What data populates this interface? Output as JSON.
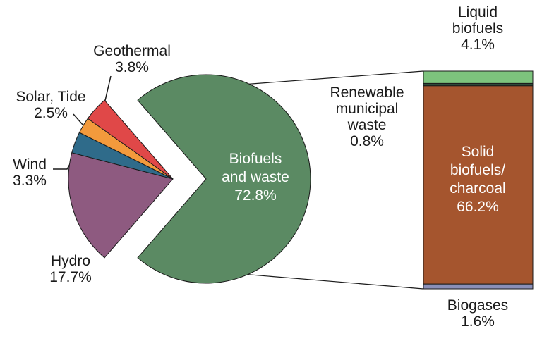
{
  "chart_data": {
    "type": "pie",
    "title": "",
    "slices": [
      {
        "name": "Biofuels and waste",
        "value": 72.8,
        "label_lines": [
          "Biofuels",
          "and waste",
          "72.8%"
        ],
        "color": "#5b8a63",
        "exploded": true
      },
      {
        "name": "Hydro",
        "value": 17.7,
        "label_lines": [
          "Hydro",
          "17.7%"
        ],
        "color": "#8e5a80"
      },
      {
        "name": "Wind",
        "value": 3.3,
        "label_lines": [
          "Wind",
          "3.3%"
        ],
        "color": "#2f6b8a"
      },
      {
        "name": "Solar, Tide",
        "value": 2.5,
        "label_lines": [
          "Solar, Tide",
          "2.5%"
        ],
        "color": "#f39a3c"
      },
      {
        "name": "Geothermal",
        "value": 3.8,
        "label_lines": [
          "Geothermal",
          "3.8%"
        ],
        "color": "#e04848"
      }
    ],
    "breakdown": {
      "of": "Biofuels and waste",
      "type": "stacked-bar",
      "segments": [
        {
          "name": "Liquid biofuels",
          "value": 4.1,
          "label_lines": [
            "Liquid",
            "biofuels",
            "4.1%"
          ],
          "color": "#7dc47d"
        },
        {
          "name": "Renewable municipal waste",
          "value": 0.8,
          "label_lines": [
            "Renewable",
            "municipal",
            "waste",
            "0.8%"
          ],
          "color": "#2e4a3a"
        },
        {
          "name": "Solid biofuels/charcoal",
          "value": 66.2,
          "label_lines": [
            "Solid",
            "biofuels/",
            "charcoal",
            "66.2%"
          ],
          "color": "#a5552e"
        },
        {
          "name": "Biogases",
          "value": 1.6,
          "label_lines": [
            "Biogases",
            "1.6%"
          ],
          "color": "#8a8fb8"
        }
      ]
    }
  }
}
